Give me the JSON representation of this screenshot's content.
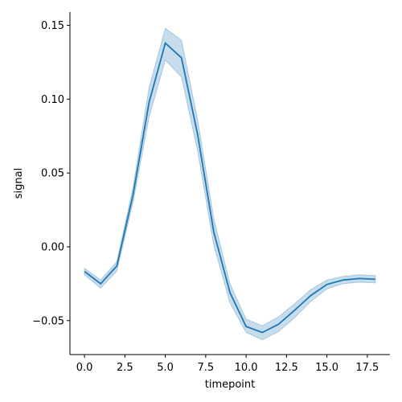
{
  "chart_data": {
    "type": "line",
    "title": "",
    "xlabel": "timepoint",
    "ylabel": "signal",
    "xlim": [
      -0.9,
      18.9
    ],
    "ylim": [
      -0.073,
      0.159
    ],
    "xticks": [
      0.0,
      2.5,
      5.0,
      7.5,
      10.0,
      12.5,
      15.0,
      17.5
    ],
    "xtick_labels": [
      "0.0",
      "2.5",
      "5.0",
      "7.5",
      "10.0",
      "12.5",
      "15.0",
      "17.5"
    ],
    "yticks": [
      -0.05,
      0.0,
      0.05,
      0.1,
      0.15
    ],
    "ytick_labels": [
      "−0.05",
      "0.00",
      "0.05",
      "0.10",
      "0.15"
    ],
    "grid": false,
    "colors": {
      "line": "#1f77b4",
      "band": "#1f77b4"
    },
    "series": [
      {
        "x": [
          0,
          1,
          2,
          3,
          4,
          5,
          6,
          7,
          8,
          9,
          10,
          11,
          12,
          13,
          14,
          15,
          16,
          17,
          18
        ],
        "values": [
          -0.0167,
          -0.025,
          -0.013,
          0.035,
          0.098,
          0.138,
          0.128,
          0.076,
          0.01,
          -0.031,
          -0.054,
          -0.058,
          -0.0525,
          -0.043,
          -0.033,
          -0.0255,
          -0.0225,
          -0.0215,
          -0.022
        ],
        "ci_lower": [
          -0.019,
          -0.028,
          -0.0165,
          0.03,
          0.088,
          0.1265,
          0.115,
          0.065,
          0.001,
          -0.038,
          -0.058,
          -0.063,
          -0.0575,
          -0.048,
          -0.037,
          -0.0285,
          -0.025,
          -0.024,
          -0.0245
        ],
        "ci_upper": [
          -0.0145,
          -0.0225,
          -0.01,
          0.04,
          0.108,
          0.148,
          0.14,
          0.086,
          0.019,
          -0.025,
          -0.049,
          -0.0535,
          -0.0475,
          -0.0385,
          -0.029,
          -0.0225,
          -0.02,
          -0.019,
          -0.0195
        ]
      }
    ]
  }
}
